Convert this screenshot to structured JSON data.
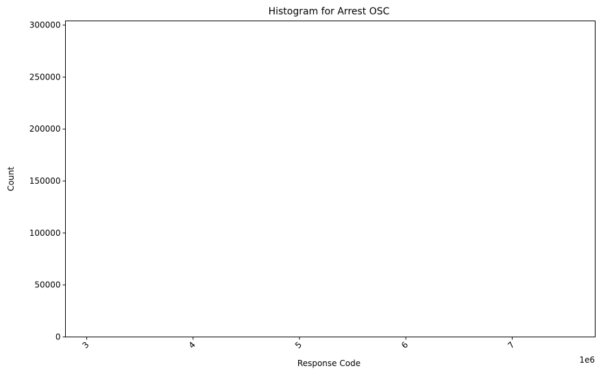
{
  "chart_data": {
    "type": "bar",
    "title": "Histogram for Arrest OSC",
    "xlabel": "Response Code",
    "ylabel": "Count",
    "x_offset_label": "1e6",
    "x_ticks": [
      {
        "value": 3000000,
        "label": "3"
      },
      {
        "value": 4000000,
        "label": "4"
      },
      {
        "value": 5000000,
        "label": "5"
      },
      {
        "value": 6000000,
        "label": "6"
      },
      {
        "value": 7000000,
        "label": "7"
      }
    ],
    "y_ticks": [
      {
        "value": 0,
        "label": "0"
      },
      {
        "value": 50000,
        "label": "50000"
      },
      {
        "value": 100000,
        "label": "100000"
      },
      {
        "value": 150000,
        "label": "150000"
      },
      {
        "value": 200000,
        "label": "200000"
      },
      {
        "value": 250000,
        "label": "250000"
      },
      {
        "value": 300000,
        "label": "300000"
      }
    ],
    "xlim": [
      2800000,
      7780000
    ],
    "ylim": [
      0,
      304000
    ],
    "x_tick_rotation_deg": -45,
    "grid": false,
    "legend": "none",
    "bars": [],
    "colors": {
      "axes": "#000000",
      "background": "#ffffff"
    }
  }
}
